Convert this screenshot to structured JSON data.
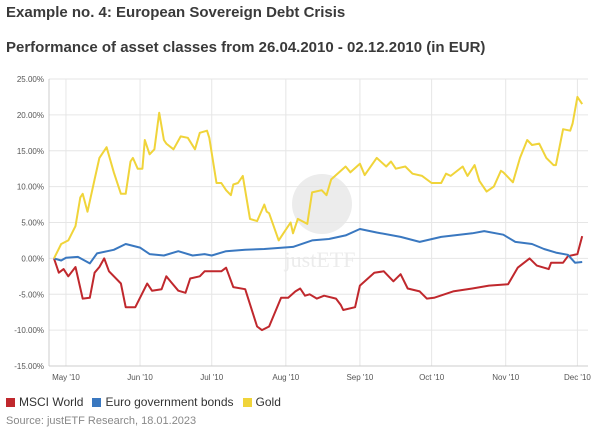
{
  "title": "Example no. 4: European Sovereign Debt Crisis",
  "subtitle": "Performance of asset classes from 26.04.2010 - 02.12.2010 (in EUR)",
  "source": "Source: justETF Research, 18.01.2023",
  "watermark": "justETF",
  "chart_data": {
    "type": "line",
    "xlabel": "",
    "ylabel": "",
    "x_unit": "days since 26.04.2010",
    "xlim": [
      0,
      221
    ],
    "ylim": [
      -15,
      25
    ],
    "yticks": [
      25,
      20,
      15,
      10,
      5,
      0,
      -5,
      -10,
      -15
    ],
    "ytick_labels": [
      "25.00%",
      "20.00%",
      "15.00%",
      "10.00%",
      "5.00%",
      "0.00%",
      "-5.00%",
      "-10.00%",
      "-15.00%"
    ],
    "xticks": [
      5,
      36,
      66,
      97,
      128,
      158,
      189,
      219
    ],
    "xtick_labels": [
      "May '10",
      "Jun '10",
      "Jul '10",
      "Aug '10",
      "Sep '10",
      "Oct '10",
      "Nov '10",
      "Dec '10"
    ],
    "grid": true,
    "legend_position": "bottom-left",
    "series": [
      {
        "name": "MSCI World",
        "color": "#c0282d",
        "x": [
          0,
          2,
          4,
          6,
          9,
          12,
          15,
          17,
          19,
          21,
          23,
          28,
          30,
          34,
          36,
          39,
          41,
          45,
          47,
          49,
          52,
          55,
          57,
          61,
          63,
          70,
          72,
          75,
          80,
          85,
          87,
          90,
          95,
          98,
          101,
          103,
          105,
          107,
          110,
          113,
          118,
          120,
          121,
          126,
          128,
          134,
          138,
          142,
          145,
          148,
          153,
          156,
          159,
          167,
          175,
          182,
          190,
          194,
          199,
          202,
          207,
          208,
          213,
          215,
          219,
          221
        ],
        "y": [
          0,
          -2,
          -1.5,
          -2.5,
          -1.2,
          -5.6,
          -5.5,
          -2,
          -1.2,
          0,
          -1.8,
          -3.5,
          -6.8,
          -6.8,
          -5.5,
          -3.5,
          -4.5,
          -4.3,
          -2.5,
          -3.3,
          -4.5,
          -4.8,
          -2.8,
          -2.5,
          -1.8,
          -1.8,
          -1.3,
          -4,
          -4.3,
          -9.5,
          -10,
          -9.5,
          -5.5,
          -5.5,
          -4.6,
          -4.2,
          -5.2,
          -5,
          -5.6,
          -5.2,
          -5.6,
          -6.5,
          -7.2,
          -6.8,
          -3.8,
          -2,
          -1.8,
          -3.2,
          -2.2,
          -4.2,
          -4.6,
          -5.6,
          -5.5,
          -4.6,
          -4.2,
          -3.8,
          -3.6,
          -1.3,
          0,
          -1,
          -1.5,
          -0.6,
          -0.6,
          0.3,
          0.6,
          3.1
        ]
      },
      {
        "name": "Euro government bonds",
        "color": "#3a78c0",
        "x": [
          0,
          3,
          5,
          10,
          15,
          18,
          25,
          30,
          36,
          40,
          46,
          52,
          58,
          63,
          66,
          72,
          80,
          88,
          100,
          108,
          115,
          122,
          128,
          135,
          145,
          153,
          162,
          175,
          180,
          188,
          193,
          200,
          205,
          210,
          215,
          218,
          221
        ],
        "y": [
          0,
          -0.3,
          0.1,
          0.2,
          -0.7,
          0.7,
          1.2,
          2,
          1.5,
          0.6,
          0.4,
          1,
          0.4,
          0.6,
          0.4,
          1,
          1.2,
          1.3,
          1.6,
          2.5,
          2.7,
          3.2,
          4.1,
          3.6,
          3,
          2.3,
          3,
          3.5,
          3.8,
          3.3,
          2.3,
          2,
          1.3,
          0.8,
          0.5,
          -0.6,
          -0.5
        ]
      },
      {
        "name": "Gold",
        "color": "#f0d43a",
        "x": [
          0,
          3,
          6,
          9,
          11,
          12,
          14,
          17,
          19,
          22,
          25,
          28,
          30,
          32,
          33,
          35,
          37,
          38,
          40,
          42,
          44,
          46,
          47,
          50,
          53,
          56,
          59,
          61,
          64,
          65,
          68,
          70,
          72,
          74,
          75,
          77,
          79,
          82,
          85,
          88,
          89,
          90,
          94,
          96,
          99,
          100,
          102,
          106,
          108,
          112,
          114,
          116,
          122,
          124,
          128,
          130,
          135,
          139,
          141,
          143,
          147,
          150,
          154,
          158,
          162,
          164,
          166,
          171,
          173,
          176,
          178,
          181,
          184,
          187,
          188,
          192,
          195,
          198,
          200,
          203,
          206,
          209,
          210,
          213,
          216,
          217,
          219,
          221
        ],
        "y": [
          0,
          2,
          2.5,
          4.5,
          8.5,
          9,
          6.5,
          11,
          14,
          15.5,
          12,
          9,
          9,
          13.5,
          14,
          12.5,
          12.5,
          16.5,
          14.5,
          15.2,
          20.3,
          16.5,
          16,
          15.2,
          17,
          16.8,
          15.2,
          17.5,
          17.8,
          16.8,
          10.5,
          10.5,
          9.5,
          8.8,
          10.3,
          10.5,
          11.5,
          5.5,
          5.2,
          7.5,
          6.5,
          6.3,
          2.5,
          3.5,
          5,
          3.5,
          5.5,
          4.8,
          9.2,
          9.5,
          8.8,
          11,
          12.8,
          12,
          13.2,
          11.6,
          14,
          12.8,
          13.5,
          12.5,
          12.8,
          11.8,
          11.5,
          10.5,
          10.5,
          11.8,
          11.5,
          12.8,
          11.5,
          13,
          10.8,
          9.3,
          10,
          12.2,
          12,
          10.6,
          14,
          16.5,
          15.8,
          16,
          14,
          13,
          13,
          18,
          17.8,
          18.8,
          22.5,
          21.5
        ]
      }
    ]
  }
}
